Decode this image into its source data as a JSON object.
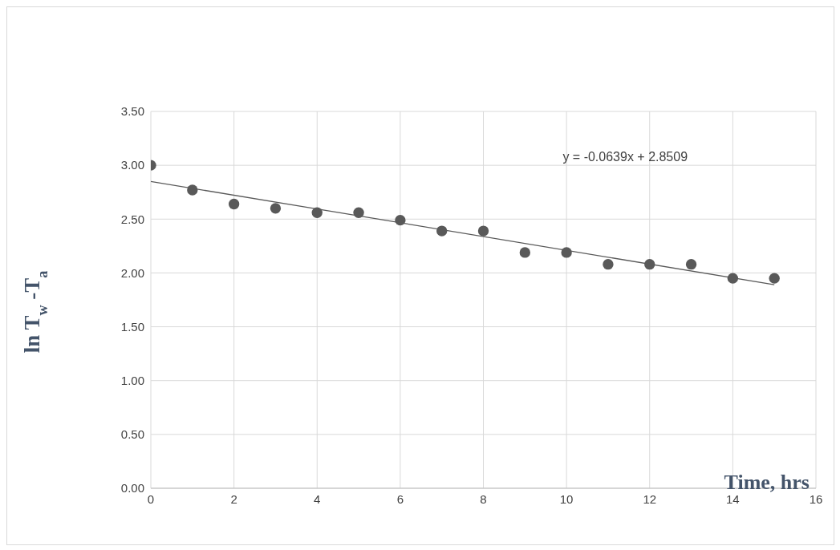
{
  "chart_data": {
    "type": "scatter",
    "xlabel": "Time, hrs",
    "ylabel": "ln T$_{w}$ -T$_{a}$",
    "annotations": [
      "y = -0.0639x + 2.8509"
    ],
    "x": [
      0,
      1,
      2,
      3,
      4,
      5,
      6,
      7,
      8,
      9,
      10,
      11,
      12,
      13,
      14,
      15
    ],
    "series": [
      {
        "color": "#595959",
        "marker": "circle",
        "values": [
          3.0,
          2.77,
          2.64,
          2.6,
          2.56,
          2.56,
          2.49,
          2.39,
          2.39,
          2.19,
          2.19,
          2.08,
          2.08,
          2.08,
          1.95,
          1.95
        ]
      },
      {
        "type": "line",
        "color": "#595959",
        "x": [
          0,
          15
        ],
        "values": [
          2.85,
          1.89
        ]
      }
    ],
    "xlim": [
      0,
      16
    ],
    "xticks": [
      0,
      2,
      4,
      6,
      8,
      10,
      12,
      14,
      16
    ],
    "ylim": [
      0,
      3.5
    ],
    "yticks": [
      {
        "value": 0,
        "label": "0.00"
      },
      {
        "value": 0.5,
        "label": "0.50"
      },
      {
        "value": 1,
        "label": "1.00"
      },
      {
        "value": 1.5,
        "label": "1.50"
      },
      {
        "value": 2,
        "label": "2.00"
      },
      {
        "value": 2.5,
        "label": "2.50"
      },
      {
        "value": 3,
        "label": "3.00"
      },
      {
        "value": 3.5,
        "label": "3.50"
      }
    ],
    "grid": true,
    "line_style": "solid"
  }
}
